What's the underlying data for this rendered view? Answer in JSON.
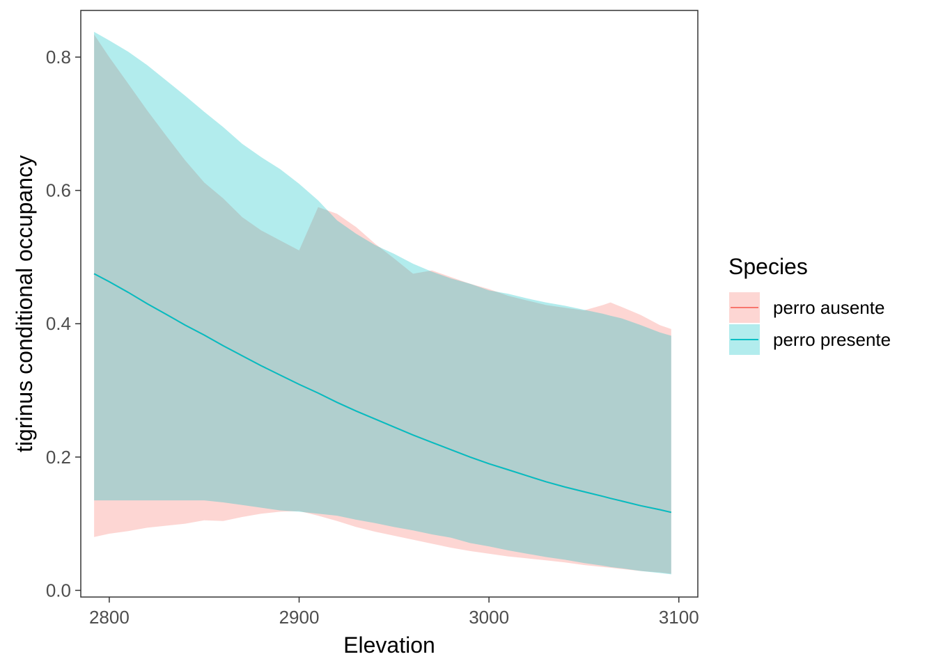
{
  "chart_data": {
    "type": "line",
    "title": "",
    "xlabel": "Elevation",
    "ylabel": "tigrinus conditional occupancy",
    "xlim": [
      2785,
      3110
    ],
    "ylim": [
      -0.01,
      0.87
    ],
    "xticks": [
      2800,
      2900,
      3000,
      3100
    ],
    "xtick_labels": [
      "2800",
      "2900",
      "3000",
      "3100"
    ],
    "yticks": [
      0.0,
      0.2,
      0.4,
      0.6,
      0.8
    ],
    "ytick_labels": [
      "0.0",
      "0.2",
      "0.4",
      "0.6",
      "0.8"
    ],
    "grid": false,
    "legend": {
      "title": "Species",
      "position": "right"
    },
    "x": [
      2792,
      2800,
      2810,
      2820,
      2830,
      2840,
      2850,
      2860,
      2870,
      2880,
      2890,
      2900,
      2910,
      2920,
      2930,
      2940,
      2950,
      2960,
      2970,
      2980,
      2990,
      3000,
      3010,
      3020,
      3030,
      3040,
      3050,
      3060,
      3064,
      3070,
      3080,
      3090,
      3096
    ],
    "series": [
      {
        "name": "perro ausente",
        "color": "#F8766D",
        "fill": "#F8766D",
        "fit": [
          0.475,
          0.463,
          0.447,
          0.43,
          0.414,
          0.398,
          0.383,
          0.367,
          0.352,
          0.337,
          0.323,
          0.309,
          0.296,
          0.282,
          0.269,
          0.257,
          0.245,
          0.233,
          0.222,
          0.211,
          0.2,
          0.19,
          0.181,
          0.172,
          0.163,
          0.155,
          0.148,
          0.141,
          0.138,
          0.134,
          0.127,
          0.121,
          0.117
        ],
        "lower": [
          0.08,
          0.085,
          0.089,
          0.094,
          0.097,
          0.1,
          0.105,
          0.104,
          0.11,
          0.115,
          0.118,
          0.119,
          0.112,
          0.104,
          0.095,
          0.088,
          0.082,
          0.076,
          0.07,
          0.064,
          0.059,
          0.055,
          0.051,
          0.048,
          0.045,
          0.042,
          0.038,
          0.035,
          0.034,
          0.032,
          0.029,
          0.027,
          0.025
        ],
        "upper": [
          0.834,
          0.8,
          0.76,
          0.72,
          0.682,
          0.645,
          0.612,
          0.588,
          0.56,
          0.54,
          0.525,
          0.51,
          0.575,
          0.565,
          0.545,
          0.52,
          0.498,
          0.475,
          0.48,
          0.47,
          0.46,
          0.452,
          0.442,
          0.435,
          0.428,
          0.424,
          0.42,
          0.428,
          0.432,
          0.425,
          0.413,
          0.398,
          0.392
        ]
      },
      {
        "name": "perro presente",
        "color": "#00BFC4",
        "fill": "#00BFC4",
        "fit": [
          0.475,
          0.463,
          0.447,
          0.43,
          0.414,
          0.398,
          0.383,
          0.367,
          0.352,
          0.337,
          0.323,
          0.309,
          0.296,
          0.282,
          0.269,
          0.257,
          0.245,
          0.233,
          0.222,
          0.211,
          0.2,
          0.19,
          0.181,
          0.172,
          0.163,
          0.155,
          0.148,
          0.141,
          0.138,
          0.134,
          0.127,
          0.121,
          0.117
        ],
        "lower": [
          0.135,
          0.135,
          0.135,
          0.135,
          0.135,
          0.135,
          0.135,
          0.132,
          0.128,
          0.124,
          0.12,
          0.118,
          0.115,
          0.112,
          0.106,
          0.101,
          0.095,
          0.09,
          0.084,
          0.079,
          0.071,
          0.066,
          0.06,
          0.055,
          0.05,
          0.046,
          0.041,
          0.037,
          0.035,
          0.033,
          0.029,
          0.026,
          0.024
        ],
        "upper": [
          0.838,
          0.825,
          0.808,
          0.788,
          0.765,
          0.742,
          0.718,
          0.695,
          0.67,
          0.65,
          0.632,
          0.61,
          0.585,
          0.555,
          0.535,
          0.518,
          0.505,
          0.49,
          0.478,
          0.468,
          0.46,
          0.45,
          0.445,
          0.438,
          0.432,
          0.427,
          0.421,
          0.415,
          0.412,
          0.408,
          0.398,
          0.387,
          0.382
        ]
      }
    ]
  }
}
